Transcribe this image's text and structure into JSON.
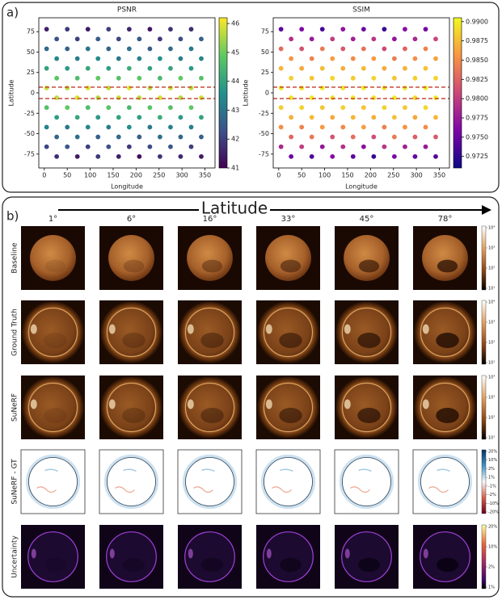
{
  "panel_a_label": "a)",
  "chart_data": [
    {
      "type": "scatter",
      "title": "PSNR",
      "x_label": "Longitude",
      "y_label": "Latitude",
      "colormap": "viridis",
      "xlim": [
        -12,
        372
      ],
      "ylim": [
        -92,
        92
      ],
      "xticks": [
        0,
        50,
        100,
        150,
        200,
        250,
        300,
        350
      ],
      "yticks": [
        -75,
        -50,
        -25,
        0,
        25,
        50,
        75
      ],
      "clim": [
        41,
        46.2
      ],
      "cticks": [
        41,
        42,
        43,
        44,
        45,
        46
      ],
      "reference_lines": [
        7,
        -7
      ],
      "reference_color": "#c0392b",
      "x": [
        5,
        50,
        95,
        140,
        185,
        230,
        275,
        320,
        27,
        72,
        117,
        162,
        207,
        252,
        297,
        342,
        5,
        50,
        95,
        140,
        185,
        230,
        275,
        320,
        27,
        72,
        117,
        162,
        207,
        252,
        297,
        342,
        5,
        50,
        95,
        140,
        185,
        230,
        275,
        320,
        27,
        72,
        117,
        162,
        207,
        252,
        297,
        342,
        5,
        50,
        95,
        140,
        185,
        230,
        275,
        320,
        27,
        72,
        117,
        162,
        207,
        252,
        297,
        342,
        5,
        50,
        95,
        140,
        185,
        230,
        275,
        320,
        27,
        72,
        117,
        162,
        207,
        252,
        297,
        342,
        5,
        50,
        95,
        140,
        185,
        230,
        275,
        320,
        27,
        72,
        117,
        162,
        207,
        252,
        297,
        342,
        5,
        50,
        95,
        140,
        185,
        230,
        275,
        320,
        27,
        72,
        117,
        162,
        207,
        252,
        297,
        342
      ],
      "y": [
        78,
        78,
        78,
        78,
        78,
        78,
        78,
        78,
        66,
        66,
        66,
        66,
        66,
        66,
        66,
        66,
        54,
        54,
        54,
        54,
        54,
        54,
        54,
        54,
        42,
        42,
        42,
        42,
        42,
        42,
        42,
        42,
        30,
        30,
        30,
        30,
        30,
        30,
        30,
        30,
        18,
        18,
        18,
        18,
        18,
        18,
        18,
        18,
        6,
        6,
        6,
        6,
        6,
        6,
        6,
        6,
        -6,
        -6,
        -6,
        -6,
        -6,
        -6,
        -6,
        -6,
        -18,
        -18,
        -18,
        -18,
        -18,
        -18,
        -18,
        -18,
        -30,
        -30,
        -30,
        -30,
        -30,
        -30,
        -30,
        -30,
        -42,
        -42,
        -42,
        -42,
        -42,
        -42,
        -42,
        -42,
        -54,
        -54,
        -54,
        -54,
        -54,
        -54,
        -54,
        -54,
        -66,
        -66,
        -66,
        -66,
        -66,
        -66,
        -66,
        -66,
        -78,
        -78,
        -78,
        -78,
        -78,
        -78,
        -78,
        -78
      ],
      "color_values": [
        41.5,
        41.9,
        41.4,
        42.0,
        41.6,
        41.3,
        41.8,
        41.7,
        42.3,
        42.0,
        42.5,
        42.1,
        42.4,
        41.9,
        42.2,
        42.6,
        42.8,
        42.6,
        43.0,
        42.7,
        42.9,
        42.5,
        42.8,
        43.1,
        43.4,
        43.2,
        43.5,
        43.1,
        43.3,
        43.6,
        43.2,
        43.4,
        44.0,
        43.8,
        44.1,
        43.9,
        44.2,
        43.9,
        44.0,
        43.8,
        44.8,
        44.6,
        44.9,
        44.7,
        44.8,
        44.5,
        44.9,
        44.7,
        45.8,
        45.6,
        45.9,
        45.7,
        46.0,
        45.6,
        45.8,
        45.7,
        45.7,
        45.9,
        45.6,
        45.8,
        45.7,
        45.9,
        45.6,
        45.8,
        44.7,
        44.9,
        44.6,
        44.8,
        44.5,
        44.8,
        44.7,
        44.9,
        43.9,
        44.1,
        43.8,
        44.0,
        43.9,
        44.2,
        43.8,
        44.0,
        43.3,
        43.1,
        43.4,
        43.2,
        43.5,
        43.1,
        43.3,
        43.2,
        42.7,
        42.9,
        42.6,
        42.8,
        42.5,
        42.9,
        42.7,
        42.6,
        42.1,
        42.4,
        42.0,
        42.3,
        41.9,
        42.2,
        42.4,
        42.0,
        41.7,
        41.4,
        41.9,
        41.5,
        41.2,
        41.8,
        41.6,
        41.4
      ]
    },
    {
      "type": "scatter",
      "title": "SSIM",
      "x_label": "Longitude",
      "y_label": "Latitude",
      "colormap": "plasma",
      "xlim": [
        -12,
        372
      ],
      "ylim": [
        -92,
        92
      ],
      "xticks": [
        0,
        50,
        100,
        150,
        200,
        250,
        300,
        350
      ],
      "yticks": [
        -75,
        -50,
        -25,
        0,
        25,
        50,
        75
      ],
      "clim": [
        0.971,
        0.9905
      ],
      "cticks": [
        0.9725,
        {
          "value": 0.975,
          "label": "0.9750"
        },
        0.9775,
        {
          "value": 0.98,
          "label": "0.9800"
        },
        0.9825,
        {
          "value": 0.985,
          "label": "0.9850"
        },
        0.9875,
        {
          "value": 0.99,
          "label": "0.9900"
        }
      ],
      "reference_lines": [
        7,
        -7
      ],
      "reference_color": "#c0392b",
      "x": [
        5,
        50,
        95,
        140,
        185,
        230,
        275,
        320,
        27,
        72,
        117,
        162,
        207,
        252,
        297,
        342,
        5,
        50,
        95,
        140,
        185,
        230,
        275,
        320,
        27,
        72,
        117,
        162,
        207,
        252,
        297,
        342,
        5,
        50,
        95,
        140,
        185,
        230,
        275,
        320,
        27,
        72,
        117,
        162,
        207,
        252,
        297,
        342,
        5,
        50,
        95,
        140,
        185,
        230,
        275,
        320,
        27,
        72,
        117,
        162,
        207,
        252,
        297,
        342,
        5,
        50,
        95,
        140,
        185,
        230,
        275,
        320,
        27,
        72,
        117,
        162,
        207,
        252,
        297,
        342,
        5,
        50,
        95,
        140,
        185,
        230,
        275,
        320,
        27,
        72,
        117,
        162,
        207,
        252,
        297,
        342,
        5,
        50,
        95,
        140,
        185,
        230,
        275,
        320,
        27,
        72,
        117,
        162,
        207,
        252,
        297,
        342
      ],
      "y": [
        78,
        78,
        78,
        78,
        78,
        78,
        78,
        78,
        66,
        66,
        66,
        66,
        66,
        66,
        66,
        66,
        54,
        54,
        54,
        54,
        54,
        54,
        54,
        54,
        42,
        42,
        42,
        42,
        42,
        42,
        42,
        42,
        30,
        30,
        30,
        30,
        30,
        30,
        30,
        30,
        18,
        18,
        18,
        18,
        18,
        18,
        18,
        18,
        6,
        6,
        6,
        6,
        6,
        6,
        6,
        6,
        -6,
        -6,
        -6,
        -6,
        -6,
        -6,
        -6,
        -6,
        -18,
        -18,
        -18,
        -18,
        -18,
        -18,
        -18,
        -18,
        -30,
        -30,
        -30,
        -30,
        -30,
        -30,
        -30,
        -30,
        -42,
        -42,
        -42,
        -42,
        -42,
        -42,
        -42,
        -42,
        -54,
        -54,
        -54,
        -54,
        -54,
        -54,
        -54,
        -54,
        -66,
        -66,
        -66,
        -66,
        -66,
        -66,
        -66,
        -66,
        -78,
        -78,
        -78,
        -78,
        -78,
        -78,
        -78,
        -78
      ],
      "color_values": [
        0.9745,
        0.976,
        0.9735,
        0.977,
        0.975,
        0.973,
        0.9765,
        0.9755,
        0.979,
        0.9775,
        0.98,
        0.978,
        0.9795,
        0.977,
        0.9785,
        0.9805,
        0.983,
        0.9815,
        0.984,
        0.982,
        0.9835,
        0.981,
        0.9825,
        0.9845,
        0.9855,
        0.9845,
        0.986,
        0.985,
        0.9858,
        0.9842,
        0.9852,
        0.9862,
        0.9872,
        0.9865,
        0.9876,
        0.9868,
        0.9874,
        0.9866,
        0.987,
        0.9878,
        0.9885,
        0.988,
        0.9888,
        0.9882,
        0.9886,
        0.9879,
        0.9884,
        0.9887,
        0.9896,
        0.9892,
        0.9898,
        0.9894,
        0.9899,
        0.9891,
        0.9895,
        0.9897,
        0.9895,
        0.9898,
        0.9892,
        0.9896,
        0.9894,
        0.9899,
        0.9891,
        0.9897,
        0.9884,
        0.9887,
        0.988,
        0.9885,
        0.9879,
        0.9886,
        0.9882,
        0.9888,
        0.987,
        0.9875,
        0.9866,
        0.9872,
        0.9868,
        0.9877,
        0.9865,
        0.9873,
        0.9852,
        0.9845,
        0.9858,
        0.9848,
        0.986,
        0.9843,
        0.9855,
        0.985,
        0.9828,
        0.9838,
        0.9815,
        0.9832,
        0.9812,
        0.984,
        0.9822,
        0.9818,
        0.9785,
        0.98,
        0.9772,
        0.9792,
        0.9768,
        0.9795,
        0.978,
        0.9775,
        0.975,
        0.9738,
        0.9765,
        0.9745,
        0.9728,
        0.976,
        0.9748,
        0.974
      ]
    }
  ],
  "panel_b": {
    "label": "b)",
    "axis_title": "Latitude",
    "columns": [
      "1°",
      "6°",
      "16°",
      "33°",
      "45°",
      "78°"
    ],
    "rows": [
      {
        "label": "Baseline",
        "colorbar_ticks": [
          "10⁴",
          "10³",
          "10²",
          "10¹"
        ]
      },
      {
        "label": "Ground Truth",
        "colorbar_ticks": [
          "10⁴",
          "10³",
          "10²",
          "10¹"
        ]
      },
      {
        "label": "SuNeRF",
        "colorbar_ticks": [
          "10⁴",
          "10³",
          "10²",
          "10¹"
        ]
      },
      {
        "label": "SuNeRF - GT",
        "colorbar_ticks": [
          "20%",
          "10%",
          "2%",
          "1%",
          "-1%",
          "-2%",
          "-10%",
          "-20%"
        ]
      },
      {
        "label": "Uncertainty",
        "colorbar_ticks": [
          "20%",
          "10%",
          "2%",
          "1%"
        ]
      }
    ]
  }
}
